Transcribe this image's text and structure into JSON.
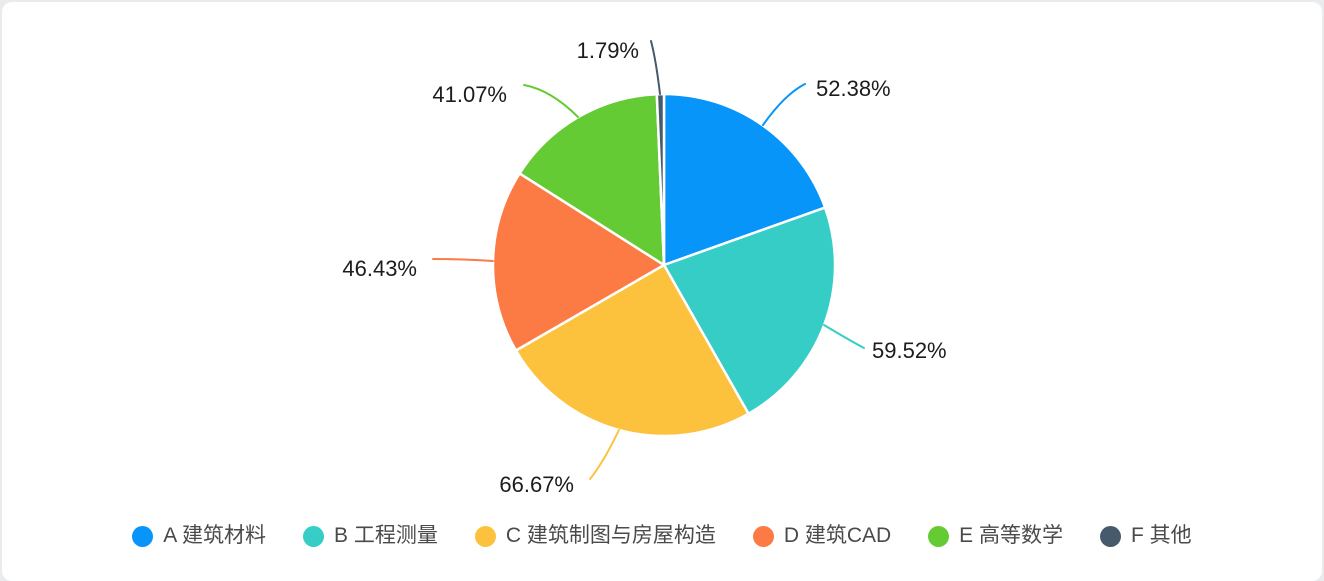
{
  "page": {
    "background_color": "#e9ebed",
    "card_background_color": "#ffffff"
  },
  "chart_data": {
    "type": "pie",
    "title": "",
    "legend_position": "bottom",
    "start_angle_deg": -90,
    "direction": "clockwise",
    "label_style": "outside-percent-with-leader-line",
    "items": [
      {
        "key": "A",
        "label": "A 建筑材料",
        "value": 52.38,
        "percent_label": "52.38%",
        "color": "#0795fa"
      },
      {
        "key": "B",
        "label": "B 工程测量",
        "value": 59.52,
        "percent_label": "59.52%",
        "color": "#37cdc7"
      },
      {
        "key": "C",
        "label": "C 建筑制图与房屋构造",
        "value": 66.67,
        "percent_label": "66.67%",
        "color": "#fdc23d"
      },
      {
        "key": "D",
        "label": "D 建筑CAD",
        "value": 46.43,
        "percent_label": "46.43%",
        "color": "#fc7b45"
      },
      {
        "key": "E",
        "label": "E 高等数学",
        "value": 41.07,
        "percent_label": "41.07%",
        "color": "#65cb35"
      },
      {
        "key": "F",
        "label": "F 其他",
        "value": 1.79,
        "percent_label": "1.79%",
        "color": "#465a6c"
      }
    ]
  }
}
